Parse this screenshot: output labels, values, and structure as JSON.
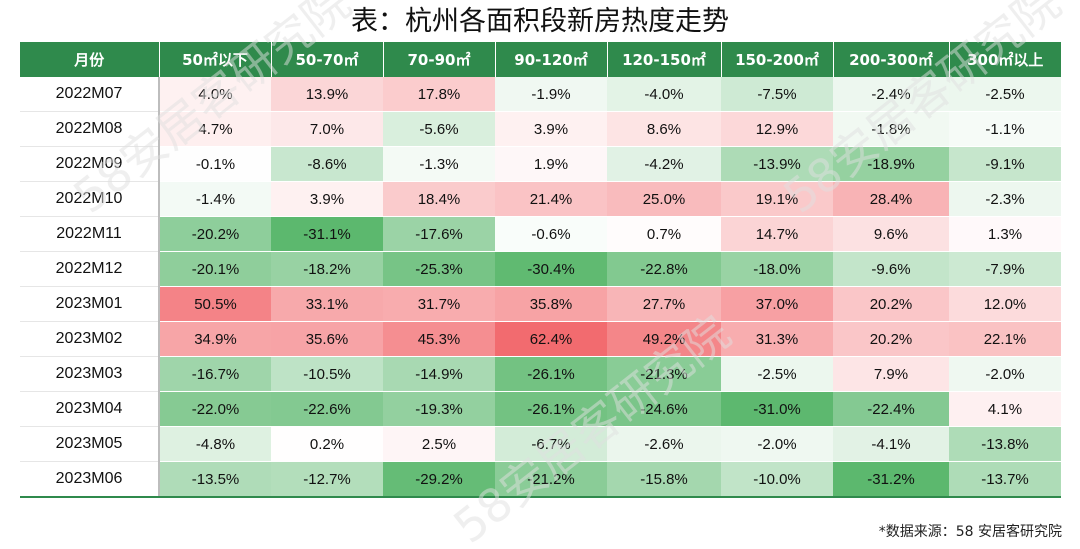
{
  "chart_data": {
    "type": "heatmap",
    "title": "表：杭州各面积段新房热度走势",
    "corner_label": "月份",
    "columns": [
      "50㎡以下",
      "50-70㎡",
      "70-90㎡",
      "90-120㎡",
      "120-150㎡",
      "150-200㎡",
      "200-300㎡",
      "300㎡以上"
    ],
    "rows": [
      "2022M07",
      "2022M08",
      "2022M09",
      "2022M10",
      "2022M11",
      "2022M12",
      "2023M01",
      "2023M02",
      "2023M03",
      "2023M04",
      "2023M05",
      "2023M06"
    ],
    "values": [
      [
        4.0,
        13.9,
        17.8,
        -1.9,
        -4.0,
        -7.5,
        -2.4,
        -2.5
      ],
      [
        4.7,
        7.0,
        -5.6,
        3.9,
        8.6,
        12.9,
        -1.8,
        -1.1
      ],
      [
        -0.1,
        -8.6,
        -1.3,
        1.9,
        -4.2,
        -13.9,
        -18.9,
        -9.1
      ],
      [
        -1.4,
        3.9,
        18.4,
        21.4,
        25.0,
        19.1,
        28.4,
        -2.3
      ],
      [
        -20.2,
        -31.1,
        -17.6,
        -0.6,
        0.7,
        14.7,
        9.6,
        1.3
      ],
      [
        -20.1,
        -18.2,
        -25.3,
        -30.4,
        -22.8,
        -18.0,
        -9.6,
        -7.9
      ],
      [
        50.5,
        33.1,
        31.7,
        35.8,
        27.7,
        37.0,
        20.2,
        12.0
      ],
      [
        34.9,
        35.6,
        45.3,
        62.4,
        49.2,
        31.3,
        20.2,
        22.1
      ],
      [
        -16.7,
        -10.5,
        -14.9,
        -26.1,
        -21.3,
        -2.5,
        7.9,
        -2.0
      ],
      [
        -22.0,
        -22.6,
        -19.3,
        -26.1,
        -24.6,
        -31.0,
        -22.4,
        4.1
      ],
      [
        -4.8,
        0.2,
        2.5,
        -6.7,
        -2.6,
        -2.0,
        -4.1,
        -13.8
      ],
      [
        -13.5,
        -12.7,
        -29.2,
        -21.2,
        -15.8,
        -10.0,
        -31.2,
        -13.7
      ]
    ],
    "value_suffix": "%",
    "color_scale": {
      "negative": "#5cb86e",
      "neutral": "#ffffff",
      "positive": "#f26b6f"
    },
    "source": "*数据来源：58 安居客研究院"
  },
  "watermark": "58安居客研究院"
}
